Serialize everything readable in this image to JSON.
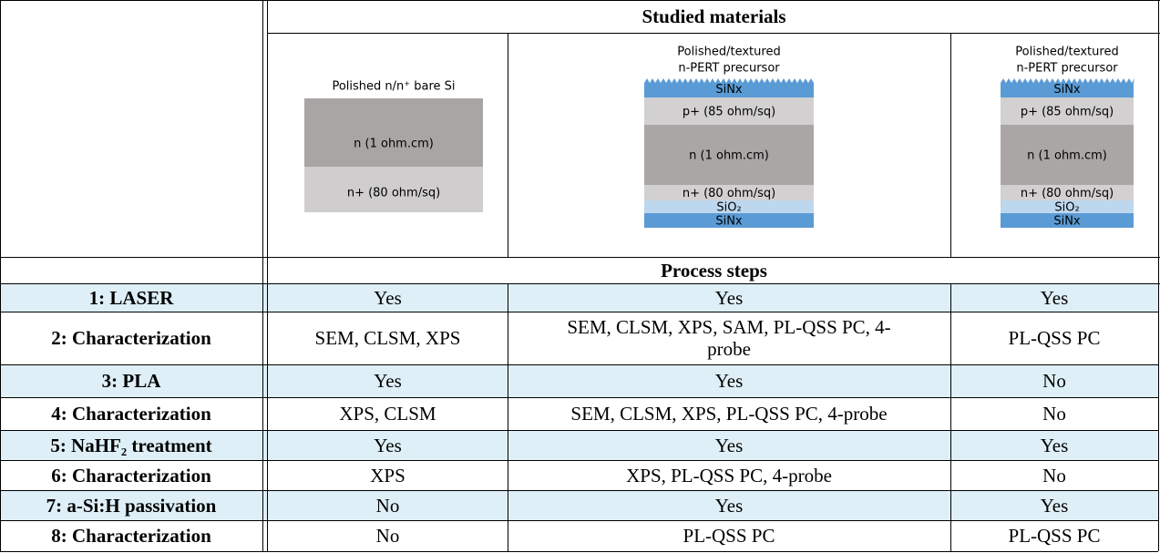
{
  "header": {
    "materials_title": "Studied materials",
    "steps_title": "Process steps"
  },
  "materials": [
    {
      "title": [
        "Polished n/n⁺ bare Si"
      ],
      "layers": [
        {
          "label": "n (1 ohm.cm)",
          "color": "#a9a5a4"
        },
        {
          "label": "n+ (80 ohm/sq)",
          "color": "#cfcdcd"
        }
      ]
    },
    {
      "title": [
        "Polished/textured",
        "n-PERT precursor"
      ],
      "layers": [
        {
          "label": "SiNx",
          "color": "#5b9bd5"
        },
        {
          "label": "p+ (85 ohm/sq)",
          "color": "#d2d0d0"
        },
        {
          "label": "n (1 ohm.cm)",
          "color": "#aaa6a5"
        },
        {
          "label": "n+ (80 ohm/sq)",
          "color": "#d2d0d0"
        },
        {
          "label": "SiO₂",
          "color": "#bdd7ee"
        },
        {
          "label": "SiNx",
          "color": "#5b9bd5"
        }
      ]
    },
    {
      "title": [
        "Polished/textured",
        "n-PERT precursor"
      ],
      "layers": [
        {
          "label": "SiNx",
          "color": "#5b9bd5"
        },
        {
          "label": "p+ (85 ohm/sq)",
          "color": "#d2d0d0"
        },
        {
          "label": "n (1 ohm.cm)",
          "color": "#aaa6a5"
        },
        {
          "label": "n+ (80 ohm/sq)",
          "color": "#d2d0d0"
        },
        {
          "label": "SiO₂",
          "color": "#bdd7ee"
        },
        {
          "label": "SiNx",
          "color": "#5b9bd5"
        }
      ]
    }
  ],
  "table": {
    "rows": [
      [
        "1: LASER",
        "Yes",
        "Yes",
        "Yes"
      ],
      [
        "2: Characterization",
        "SEM, CLSM, XPS",
        "SEM, CLSM, XPS, SAM, PL-QSS PC, 4-probe",
        "PL-QSS PC"
      ],
      [
        "3: PLA",
        "Yes",
        "Yes",
        "No"
      ],
      [
        "4: Characterization",
        "XPS, CLSM",
        "SEM, CLSM, XPS, PL-QSS PC, 4-probe",
        "No"
      ],
      [
        "5: NaHF₂ treatment",
        "Yes",
        "Yes",
        "Yes"
      ],
      [
        "6: Characterization",
        "XPS",
        "XPS, PL-QSS PC, 4-probe",
        "No"
      ],
      [
        "7: a-Si:H passivation",
        "No",
        "Yes",
        "Yes"
      ],
      [
        "8: Characterization",
        "No",
        "PL-QSS PC",
        "PL-QSS PC"
      ]
    ]
  }
}
